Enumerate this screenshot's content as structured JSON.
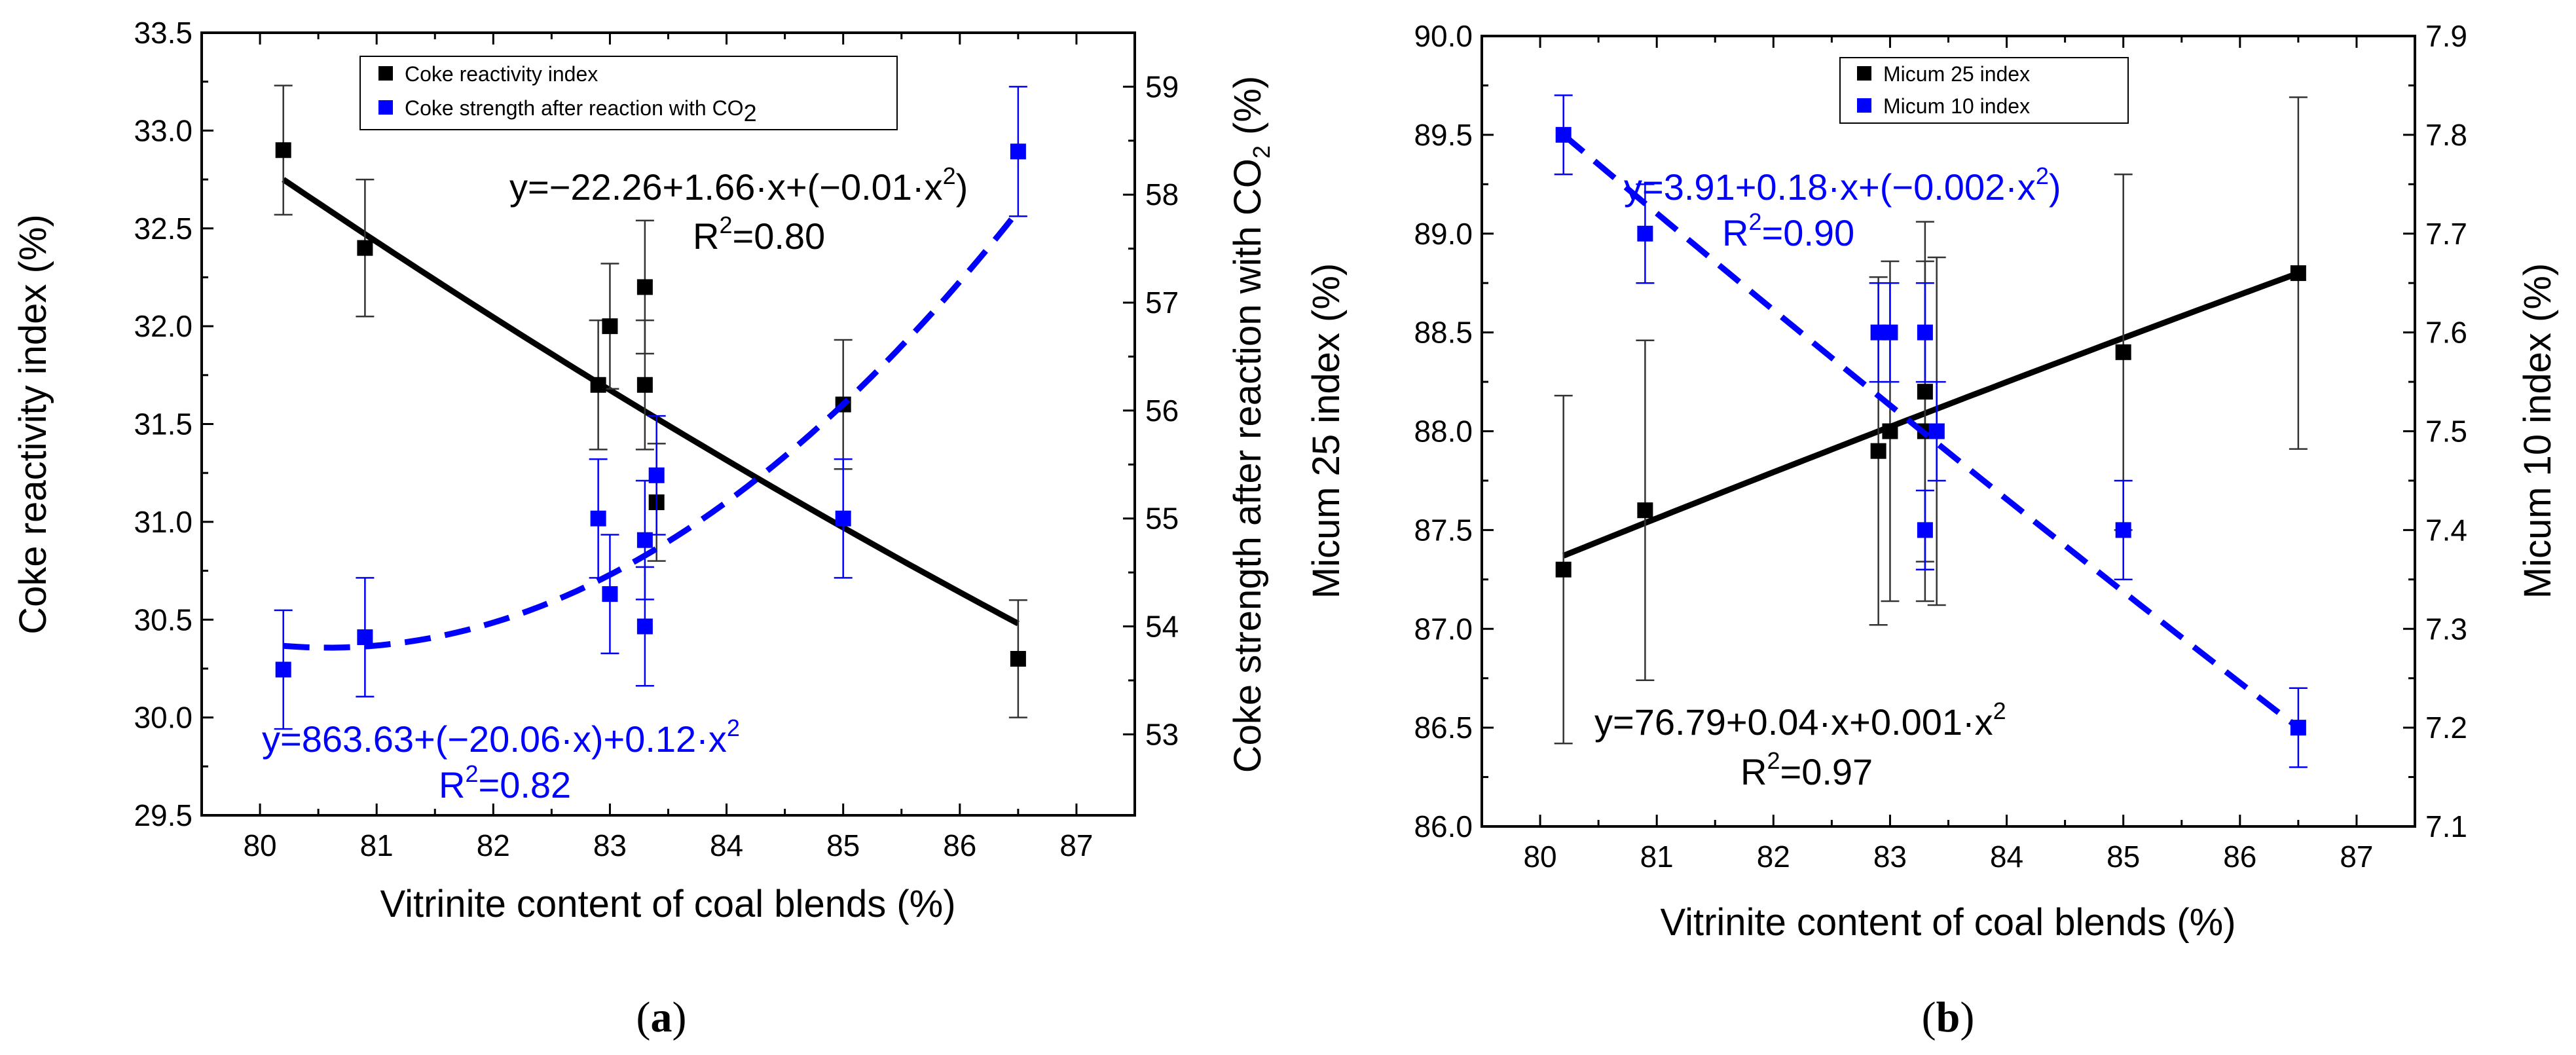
{
  "charts": [
    {
      "id": "a",
      "panel_label": "(a)",
      "panel_letter": "a",
      "xlabel": "Vitrinite content of coal blends (%)",
      "ylabel_left": "Coke reactivity index (%)",
      "ylabel_right_main": "Coke strength after reaction with CO",
      "ylabel_right_sub": "2",
      "ylabel_right_tail": " (%)",
      "legend": {
        "black": "Coke reactivity index",
        "blue_main": "Coke strength after reaction with CO",
        "blue_sub": "2"
      },
      "eq_black_main": "y=−22.26+1.66·x+(−0.01·x",
      "eq_black_sup": "2",
      "eq_black_tail": ")",
      "r2_black_main": "R",
      "r2_black_sup": "2",
      "r2_black_val": "=0.80",
      "eq_blue_main": "y=863.63+(−20.06·x)+0.12·x",
      "eq_blue_sup": "2",
      "eq_blue_tail": "",
      "r2_blue_main": "R",
      "r2_blue_sup": "2",
      "r2_blue_val": "=0.82"
    },
    {
      "id": "b",
      "panel_label": "(b)",
      "panel_letter": "b",
      "xlabel": "Vitrinite content of coal blends (%)",
      "ylabel_left": "Micum 25 index (%)",
      "ylabel_right_main": "Micum 10 index (%)",
      "ylabel_right_sub": "",
      "ylabel_right_tail": "",
      "legend": {
        "black": "Micum 25 index",
        "blue_main": "Micum 10 index",
        "blue_sub": ""
      },
      "eq_black_main": "y=76.79+0.04·x+0.001·x",
      "eq_black_sup": "2",
      "eq_black_tail": "",
      "r2_black_main": "R",
      "r2_black_sup": "2",
      "r2_black_val": "=0.97",
      "eq_blue_main": "y=3.91+0.18·x+(−0.002·x",
      "eq_blue_sup": "2",
      "eq_blue_tail": ")",
      "r2_blue_main": "R",
      "r2_blue_sup": "2",
      "r2_blue_val": "=0.90"
    }
  ],
  "colors": {
    "black": "#000000",
    "blue": "#0000ff"
  },
  "chart_data": [
    {
      "type": "scatter",
      "title": "(a)",
      "xlabel": "Vitrinite content of coal blends (%)",
      "ylabel": "Coke reactivity index (%)",
      "y2label": "Coke strength after reaction with CO2 (%)",
      "xlim": [
        79.5,
        87.5
      ],
      "ylim": [
        29.5,
        33.5
      ],
      "y2lim": [
        52.25,
        59.5
      ],
      "xticks": [
        80,
        81,
        82,
        83,
        84,
        85,
        86,
        87
      ],
      "yticks": [
        29.5,
        30.0,
        30.5,
        31.0,
        31.5,
        32.0,
        32.5,
        33.0,
        33.5
      ],
      "y2ticks": [
        53,
        54,
        55,
        56,
        57,
        58,
        59
      ],
      "series": [
        {
          "name": "Coke reactivity index",
          "axis": "left",
          "color": "#000000",
          "x": [
            80.2,
            80.9,
            82.9,
            83.0,
            83.3,
            83.3,
            83.4,
            85.0,
            86.5
          ],
          "y": [
            32.9,
            32.4,
            31.7,
            32.0,
            32.2,
            31.7,
            31.1,
            31.6,
            30.3
          ],
          "err": [
            0.33,
            0.35,
            0.33,
            0.32,
            0.34,
            0.33,
            0.3,
            0.33,
            0.3
          ],
          "fit": {
            "style": "solid",
            "a": -22.26,
            "b": 1.66,
            "c": -0.01,
            "y_start": 32.75,
            "y_end": 30.48
          }
        },
        {
          "name": "Coke strength after reaction with CO2",
          "axis": "right",
          "color": "#0000ff",
          "x": [
            80.2,
            80.9,
            82.9,
            83.0,
            83.3,
            83.3,
            83.4,
            85.0,
            86.5
          ],
          "y": [
            53.6,
            53.9,
            55.0,
            54.3,
            54.8,
            54.0,
            55.4,
            55.0,
            58.4
          ],
          "err": [
            0.55,
            0.55,
            0.55,
            0.55,
            0.55,
            0.55,
            0.55,
            0.55,
            0.6
          ],
          "fit": {
            "style": "dashed",
            "a": 863.63,
            "b": -20.06,
            "c": 0.12,
            "anchors_x": [
              80.2,
              83.4,
              86.5
            ],
            "anchors_y": [
              53.82,
              54.72,
              57.85
            ]
          }
        }
      ]
    },
    {
      "type": "scatter",
      "title": "(b)",
      "xlabel": "Vitrinite content of coal blends (%)",
      "ylabel": "Micum 25 index (%)",
      "y2label": "Micum 10 index (%)",
      "xlim": [
        79.5,
        87.5
      ],
      "ylim": [
        86.0,
        90.0
      ],
      "y2lim": [
        7.1,
        7.9
      ],
      "xticks": [
        80,
        81,
        82,
        83,
        84,
        85,
        86,
        87
      ],
      "yticks": [
        86.0,
        86.5,
        87.0,
        87.5,
        88.0,
        88.5,
        89.0,
        89.5,
        90.0
      ],
      "y2ticks": [
        7.1,
        7.2,
        7.3,
        7.4,
        7.5,
        7.6,
        7.7,
        7.8,
        7.9
      ],
      "series": [
        {
          "name": "Micum 25 index",
          "axis": "left",
          "color": "#000000",
          "x": [
            80.2,
            80.9,
            82.9,
            83.0,
            83.3,
            83.3,
            83.4,
            85.0,
            86.5
          ],
          "y": [
            87.3,
            87.6,
            87.9,
            88.0,
            88.2,
            88.0,
            88.0,
            88.4,
            88.8
          ],
          "err": [
            0.88,
            0.86,
            0.88,
            0.86,
            0.86,
            0.86,
            0.88,
            0.9,
            0.89
          ],
          "fit": {
            "style": "solid",
            "a": 76.79,
            "b": 0.04,
            "c": 0.001,
            "y_start": 87.37,
            "y_end": 88.8
          }
        },
        {
          "name": "Micum 10 index",
          "axis": "right",
          "color": "#0000ff",
          "x": [
            80.2,
            80.9,
            82.9,
            83.0,
            83.3,
            83.3,
            83.4,
            85.0,
            86.5
          ],
          "y": [
            7.8,
            7.7,
            7.6,
            7.6,
            7.6,
            7.4,
            7.5,
            7.4,
            7.2
          ],
          "err": [
            0.04,
            0.05,
            0.05,
            0.05,
            0.05,
            0.04,
            0.05,
            0.05,
            0.04
          ],
          "fit": {
            "style": "dashed",
            "a": 3.91,
            "b": 0.18,
            "c": -0.002,
            "y_start": 7.8,
            "y_end": 7.2
          }
        }
      ]
    }
  ]
}
